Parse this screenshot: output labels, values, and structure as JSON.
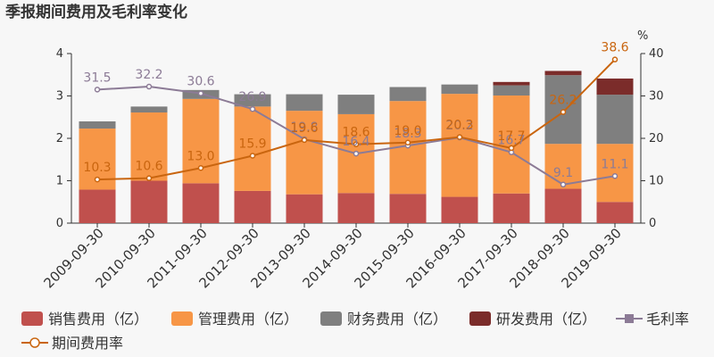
{
  "chart_data": {
    "type": "bar",
    "stacked": true,
    "title": "季报期间费用及毛利率变化",
    "categories": [
      "2009-09-30",
      "2010-09-30",
      "2011-09-30",
      "2012-09-30",
      "2013-09-30",
      "2014-09-30",
      "2015-09-30",
      "2016-09-30",
      "2017-09-30",
      "2018-09-30",
      "2019-09-30"
    ],
    "y_left": {
      "ylim": [
        0,
        4
      ],
      "ticks": [
        "0",
        "1",
        "2",
        "3",
        "4"
      ]
    },
    "y_right": {
      "ylim": [
        0,
        40
      ],
      "ticks": [
        "0",
        "10",
        "20",
        "30",
        "40"
      ],
      "unit": "%"
    },
    "grid": false,
    "legend_position": "bottom",
    "bar_series": [
      {
        "name": "销售费用（亿）",
        "color": "#c0504d",
        "values": [
          0.79,
          1.0,
          0.94,
          0.76,
          0.68,
          0.71,
          0.69,
          0.62,
          0.7,
          0.81,
          0.5
        ]
      },
      {
        "name": "管理费用（亿）",
        "color": "#f79646",
        "values": [
          1.44,
          1.61,
          1.99,
          1.99,
          1.97,
          1.86,
          2.19,
          2.43,
          2.31,
          1.06,
          1.37
        ]
      },
      {
        "name": "财务费用（亿）",
        "color": "#7f7f7f",
        "values": [
          0.17,
          0.14,
          0.21,
          0.29,
          0.39,
          0.46,
          0.33,
          0.22,
          0.24,
          1.62,
          1.16
        ]
      },
      {
        "name": "研发费用（亿）",
        "color": "#7b2c2a",
        "values": [
          0,
          0,
          0,
          0,
          0,
          0,
          0,
          0,
          0.08,
          0.1,
          0.38
        ]
      }
    ],
    "line_series": [
      {
        "name": "毛利率",
        "color": "#8c7b96",
        "values": [
          31.5,
          32.2,
          30.6,
          26.9,
          19.8,
          16.4,
          18.3,
          20.2,
          16.7,
          9.1,
          11.1
        ],
        "labels": [
          "31.5",
          "32.2",
          "30.6",
          "26.9",
          "19.8",
          "16.4",
          "18.3",
          "20.2",
          "16.7",
          "9.1",
          "11.1"
        ]
      },
      {
        "name": "期间费用率",
        "color": "#c9650f",
        "values": [
          10.3,
          10.6,
          13.0,
          15.9,
          19.6,
          18.6,
          19.0,
          20.3,
          17.7,
          26.2,
          38.6
        ],
        "labels": [
          "10.3",
          "10.6",
          "13.0",
          "15.9",
          "19.6",
          "18.6",
          "19.0",
          "20.3",
          "17.7",
          "26.2",
          "38.6"
        ]
      }
    ]
  }
}
